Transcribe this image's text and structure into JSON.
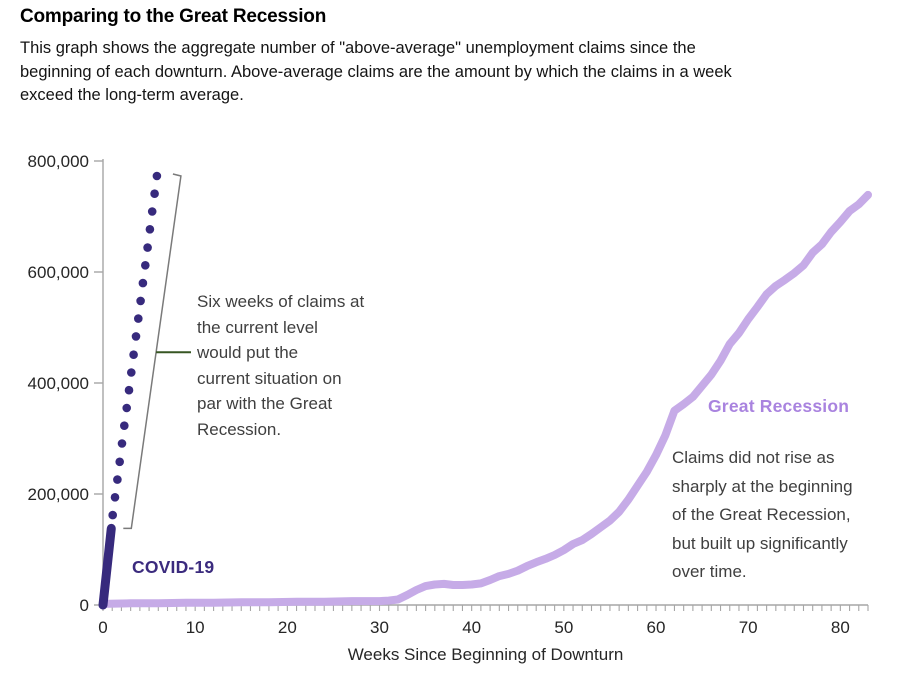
{
  "header": {
    "title": "Comparing to the Great Recession",
    "subtitle_lines": [
      "This graph shows the aggregate number of \"above-average\" unemployment claims since the",
      "beginning of each downturn. Above-average claims are the amount by which the claims in a week",
      "exceed the long-term average."
    ]
  },
  "series_labels": {
    "covid": "COVID-19",
    "great_recession": "Great Recession"
  },
  "annotations": {
    "six_weeks": {
      "lines": [
        "Six weeks of claims at",
        "the current level",
        "would put the",
        "current situation on",
        "par with the Great",
        "Recession."
      ]
    },
    "buildup": {
      "lines": [
        "Claims did not rise as",
        "sharply at the beginning",
        "of the Great Recession,",
        "but built up significantly",
        "over time."
      ]
    }
  },
  "colors": {
    "covid": "#372a7d",
    "covid_label": "#3b2b7e",
    "great_recession": "#c6abe7",
    "great_recession_label": "#a983df",
    "axis": "#a6a6a6",
    "bracket": "#7a7a7a",
    "leader_green": "#375623",
    "annotation_text": "#3f3f3f"
  },
  "chart_data": {
    "type": "line",
    "title": "Comparing to the Great Recession",
    "xlabel": "Weeks Since Beginning of Downturn",
    "ylabel": "",
    "xlim": [
      0,
      83
    ],
    "ylim": [
      0,
      800000
    ],
    "grid": false,
    "legend_position": "inline-labels",
    "x_major_ticks": [
      0,
      10,
      20,
      30,
      40,
      50,
      60,
      70,
      80
    ],
    "y_ticks": [
      0,
      200000,
      400000,
      600000,
      800000
    ],
    "y_tick_labels": [
      "0",
      "200,000",
      "400,000",
      "600,000",
      "800,000"
    ],
    "series": [
      {
        "id": "great-recession",
        "name": "Great Recession",
        "style": "line",
        "stroke_width": 8,
        "color": "#c6abe7",
        "points": [
          [
            0,
            2000
          ],
          [
            3,
            3000
          ],
          [
            6,
            3000
          ],
          [
            9,
            4000
          ],
          [
            12,
            4000
          ],
          [
            15,
            5000
          ],
          [
            18,
            5000
          ],
          [
            21,
            6000
          ],
          [
            24,
            6000
          ],
          [
            27,
            7000
          ],
          [
            30,
            7000
          ],
          [
            31,
            8000
          ],
          [
            32,
            10000
          ],
          [
            33,
            18000
          ],
          [
            34,
            27000
          ],
          [
            35,
            34000
          ],
          [
            36,
            37000
          ],
          [
            37,
            38000
          ],
          [
            38,
            36000
          ],
          [
            39,
            36000
          ],
          [
            40,
            37000
          ],
          [
            41,
            39000
          ],
          [
            42,
            45000
          ],
          [
            43,
            52000
          ],
          [
            44,
            56000
          ],
          [
            45,
            62000
          ],
          [
            46,
            70000
          ],
          [
            47,
            77000
          ],
          [
            48,
            83000
          ],
          [
            49,
            90000
          ],
          [
            50,
            99000
          ],
          [
            51,
            110000
          ],
          [
            52,
            117000
          ],
          [
            53,
            128000
          ],
          [
            54,
            140000
          ],
          [
            55,
            152000
          ],
          [
            56,
            168000
          ],
          [
            57,
            190000
          ],
          [
            58,
            215000
          ],
          [
            59,
            240000
          ],
          [
            60,
            270000
          ],
          [
            61,
            305000
          ],
          [
            62,
            350000
          ],
          [
            63,
            362000
          ],
          [
            64,
            375000
          ],
          [
            65,
            395000
          ],
          [
            66,
            415000
          ],
          [
            67,
            440000
          ],
          [
            68,
            470000
          ],
          [
            69,
            490000
          ],
          [
            70,
            515000
          ],
          [
            71,
            537000
          ],
          [
            72,
            560000
          ],
          [
            73,
            575000
          ],
          [
            74,
            586000
          ],
          [
            75,
            598000
          ],
          [
            76,
            612000
          ],
          [
            77,
            635000
          ],
          [
            78,
            650000
          ],
          [
            79,
            672000
          ],
          [
            80,
            690000
          ],
          [
            81,
            710000
          ],
          [
            82,
            722000
          ],
          [
            83,
            739000
          ]
        ]
      },
      {
        "id": "covid",
        "name": "COVID-19",
        "style": "line",
        "stroke_width": 9,
        "color": "#372a7d",
        "points": [
          [
            0,
            0
          ],
          [
            0.9,
            138000
          ]
        ]
      },
      {
        "id": "covid-projection",
        "name": "COVID-19 six-week projection",
        "style": "dots",
        "color": "#372a7d",
        "points": [
          [
            1.05,
            162000
          ],
          [
            1.3,
            194000
          ],
          [
            1.56,
            226000
          ],
          [
            1.81,
            258000
          ],
          [
            2.06,
            291000
          ],
          [
            2.31,
            323000
          ],
          [
            2.57,
            355000
          ],
          [
            2.82,
            387000
          ],
          [
            3.07,
            419000
          ],
          [
            3.32,
            451000
          ],
          [
            3.58,
            484000
          ],
          [
            3.83,
            516000
          ],
          [
            4.08,
            548000
          ],
          [
            4.33,
            580000
          ],
          [
            4.59,
            612000
          ],
          [
            4.84,
            644000
          ],
          [
            5.09,
            677000
          ],
          [
            5.34,
            709000
          ],
          [
            5.6,
            741000
          ],
          [
            5.85,
            773000
          ]
        ]
      }
    ]
  }
}
